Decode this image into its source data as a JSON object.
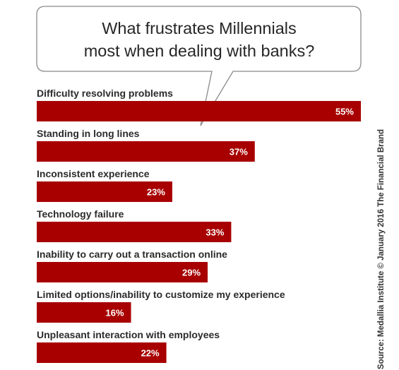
{
  "title_lines": [
    "What frustrates Millennials",
    "most when dealing with banks?"
  ],
  "source": "Source: Medallia Institute © January 2016 The Financial Brand",
  "colors": {
    "bar": "#a80000",
    "bubble_stroke": "#8a8a8a",
    "text": "#2b2b2b"
  },
  "chart_data": {
    "type": "bar",
    "orientation": "horizontal",
    "categories": [
      "Difficulty resolving problems",
      "Standing in long lines",
      "Inconsistent experience",
      "Technology failure",
      "Inability to carry out a transaction online",
      "Limited options/inability to customize my experience",
      "Unpleasant interaction with employees"
    ],
    "values": [
      55,
      37,
      23,
      33,
      29,
      16,
      22
    ],
    "value_labels": [
      "55%",
      "37%",
      "23%",
      "33%",
      "29%",
      "16%",
      "22%"
    ],
    "xlim": [
      0,
      55
    ],
    "grid": false,
    "legend": "none"
  }
}
